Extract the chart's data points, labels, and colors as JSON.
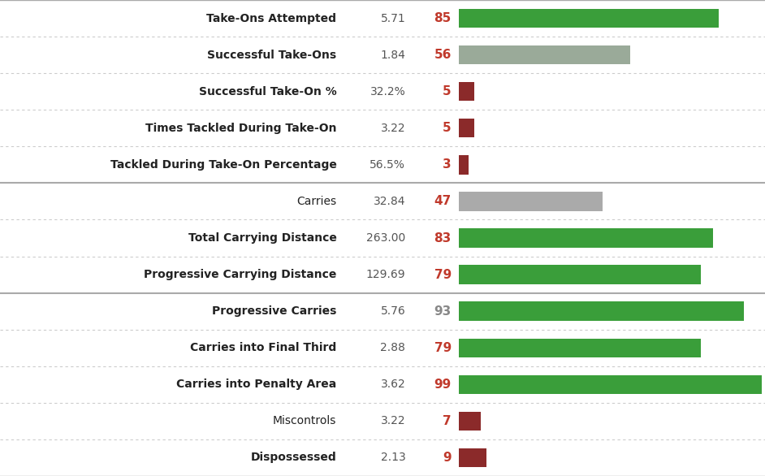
{
  "rows": [
    {
      "label": "Take-Ons Attempted",
      "value": "5.71",
      "percentile": 85,
      "bar_color": "#3a9e3a",
      "pct_color": "#c0392b",
      "bold": true
    },
    {
      "label": "Successful Take-Ons",
      "value": "1.84",
      "percentile": 56,
      "bar_color": "#9aaa99",
      "pct_color": "#c0392b",
      "bold": true
    },
    {
      "label": "Successful Take-On %",
      "value": "32.2%",
      "percentile": 5,
      "bar_color": "#8b2a2a",
      "pct_color": "#c0392b",
      "bold": true
    },
    {
      "label": "Times Tackled During Take-On",
      "value": "3.22",
      "percentile": 5,
      "bar_color": "#8b2a2a",
      "pct_color": "#c0392b",
      "bold": true
    },
    {
      "label": "Tackled During Take-On Percentage",
      "value": "56.5%",
      "percentile": 3,
      "bar_color": "#8b2a2a",
      "pct_color": "#c0392b",
      "bold": true
    },
    {
      "label": "Carries",
      "value": "32.84",
      "percentile": 47,
      "bar_color": "#aaaaaa",
      "pct_color": "#c0392b",
      "bold": false
    },
    {
      "label": "Total Carrying Distance",
      "value": "263.00",
      "percentile": 83,
      "bar_color": "#3a9e3a",
      "pct_color": "#c0392b",
      "bold": true
    },
    {
      "label": "Progressive Carrying Distance",
      "value": "129.69",
      "percentile": 79,
      "bar_color": "#3a9e3a",
      "pct_color": "#c0392b",
      "bold": true
    },
    {
      "label": "Progressive Carries",
      "value": "5.76",
      "percentile": 93,
      "bar_color": "#3a9e3a",
      "pct_color": "#888888",
      "bold": true
    },
    {
      "label": "Carries into Final Third",
      "value": "2.88",
      "percentile": 79,
      "bar_color": "#3a9e3a",
      "pct_color": "#c0392b",
      "bold": true
    },
    {
      "label": "Carries into Penalty Area",
      "value": "3.62",
      "percentile": 99,
      "bar_color": "#3a9e3a",
      "pct_color": "#c0392b",
      "bold": true
    },
    {
      "label": "Miscontrols",
      "value": "3.22",
      "percentile": 7,
      "bar_color": "#8b2a2a",
      "pct_color": "#c0392b",
      "bold": false
    },
    {
      "label": "Dispossessed",
      "value": "2.13",
      "percentile": 9,
      "bar_color": "#8b2a2a",
      "pct_color": "#c0392b",
      "bold": true
    }
  ],
  "group_separators": [
    5,
    8
  ],
  "background_color": "#ffffff",
  "label_fontsize": 10.0,
  "value_fontsize": 10.0,
  "pct_fontsize": 11.0,
  "sep_color": "#aaaaaa",
  "dot_color": "#cccccc"
}
